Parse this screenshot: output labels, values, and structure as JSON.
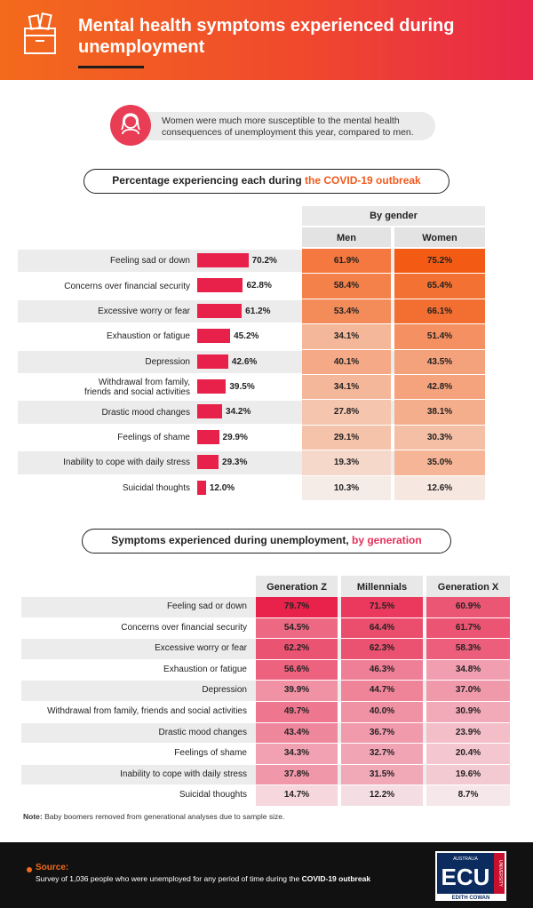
{
  "header": {
    "title": "Mental health symptoms experienced during unemployment"
  },
  "callout": {
    "text": "Women were much more susceptible to the mental health consequences of unemployment this year, compared to men.",
    "icon": "person-icon"
  },
  "section1": {
    "title_prefix": "Percentage experiencing each during ",
    "title_highlight": "the COVID-19 outbreak",
    "by_gender_label": "By gender",
    "col_men": "Men",
    "col_women": "Women"
  },
  "section2": {
    "title_prefix": "Symptoms experienced during unemployment, ",
    "title_highlight": "by generation",
    "col_genz": "Generation Z",
    "col_mill": "Millennials",
    "col_genx": "Generation X"
  },
  "note": {
    "label": "Note:",
    "text": " Baby boomers removed from generational analyses due to sample size."
  },
  "footer": {
    "source_label": "Source:",
    "source_text_prefix": "Survey of 1,036 people who were unemployed for any period of time during the ",
    "source_text_bold": "COVID-19 outbreak",
    "logo_top": "AUSTRALIA",
    "logo_main": "ECU",
    "logo_side": "UNIVERSITY",
    "logo_bottom": "EDITH COWAN"
  },
  "colors": {
    "bar": "#e8214a",
    "orange_scale_high": "#f35b14",
    "pink_scale_high": "#e8214a"
  },
  "chart_data": [
    {
      "type": "bar",
      "title": "Percentage experiencing each during the COVID-19 outbreak",
      "categories": [
        "Feeling sad or down",
        "Concerns over financial security",
        "Excessive worry or fear",
        "Exhaustion or fatigue",
        "Depression",
        "Withdrawal from family, friends and social activities",
        "Drastic mood changes",
        "Feelings of shame",
        "Inability to cope with daily stress",
        "Suicidal thoughts"
      ],
      "labels": [
        "Feeling sad or down",
        "Concerns over financial security",
        "Excessive worry or fear",
        "Exhaustion or fatigue",
        "Depression",
        "Withdrawal from family,\nfriends and social activities",
        "Drastic mood changes",
        "Feelings of shame",
        "Inability to cope with daily stress",
        "Suicidal thoughts"
      ],
      "values": [
        70.2,
        62.8,
        61.2,
        45.2,
        42.6,
        39.5,
        34.2,
        29.9,
        29.3,
        12.0
      ],
      "value_labels": [
        "70.2%",
        "62.8%",
        "61.2%",
        "45.2%",
        "42.6%",
        "39.5%",
        "34.2%",
        "29.9%",
        "29.3%",
        "12.0%"
      ]
    },
    {
      "type": "table",
      "title": "By gender",
      "columns": [
        "Men",
        "Women"
      ],
      "series": [
        {
          "name": "Men",
          "values": [
            61.9,
            58.4,
            53.4,
            34.1,
            40.1,
            34.1,
            27.8,
            29.1,
            19.3,
            10.3
          ],
          "labels": [
            "61.9%",
            "58.4%",
            "53.4%",
            "34.1%",
            "40.1%",
            "34.1%",
            "27.8%",
            "29.1%",
            "19.3%",
            "10.3%"
          ]
        },
        {
          "name": "Women",
          "values": [
            75.2,
            65.4,
            66.1,
            51.4,
            43.5,
            42.8,
            38.1,
            30.3,
            35.0,
            12.6
          ],
          "labels": [
            "75.2%",
            "65.4%",
            "66.1%",
            "51.4%",
            "43.5%",
            "42.8%",
            "38.1%",
            "30.3%",
            "35.0%",
            "12.6%"
          ]
        }
      ]
    },
    {
      "type": "table",
      "title": "Symptoms experienced during unemployment, by generation",
      "categories": [
        "Feeling sad or down",
        "Concerns over financial security",
        "Excessive worry or fear",
        "Exhaustion or fatigue",
        "Depression",
        "Withdrawal from family, friends and social activities",
        "Drastic mood changes",
        "Feelings of shame",
        "Inability to cope with daily stress",
        "Suicidal thoughts"
      ],
      "series": [
        {
          "name": "Generation Z",
          "values": [
            79.7,
            54.5,
            62.2,
            56.6,
            39.9,
            49.7,
            43.4,
            34.3,
            37.8,
            14.7
          ],
          "labels": [
            "79.7%",
            "54.5%",
            "62.2%",
            "56.6%",
            "39.9%",
            "49.7%",
            "43.4%",
            "34.3%",
            "37.8%",
            "14.7%"
          ]
        },
        {
          "name": "Millennials",
          "values": [
            71.5,
            64.4,
            62.3,
            46.3,
            44.7,
            40.0,
            36.7,
            32.7,
            31.5,
            12.2
          ],
          "labels": [
            "71.5%",
            "64.4%",
            "62.3%",
            "46.3%",
            "44.7%",
            "40.0%",
            "36.7%",
            "32.7%",
            "31.5%",
            "12.2%"
          ]
        },
        {
          "name": "Generation X",
          "values": [
            60.9,
            61.7,
            58.3,
            34.8,
            37.0,
            30.9,
            23.9,
            20.4,
            19.6,
            8.7
          ],
          "labels": [
            "60.9%",
            "61.7%",
            "58.3%",
            "34.8%",
            "37.0%",
            "30.9%",
            "23.9%",
            "20.4%",
            "19.6%",
            "8.7%"
          ]
        }
      ]
    }
  ]
}
